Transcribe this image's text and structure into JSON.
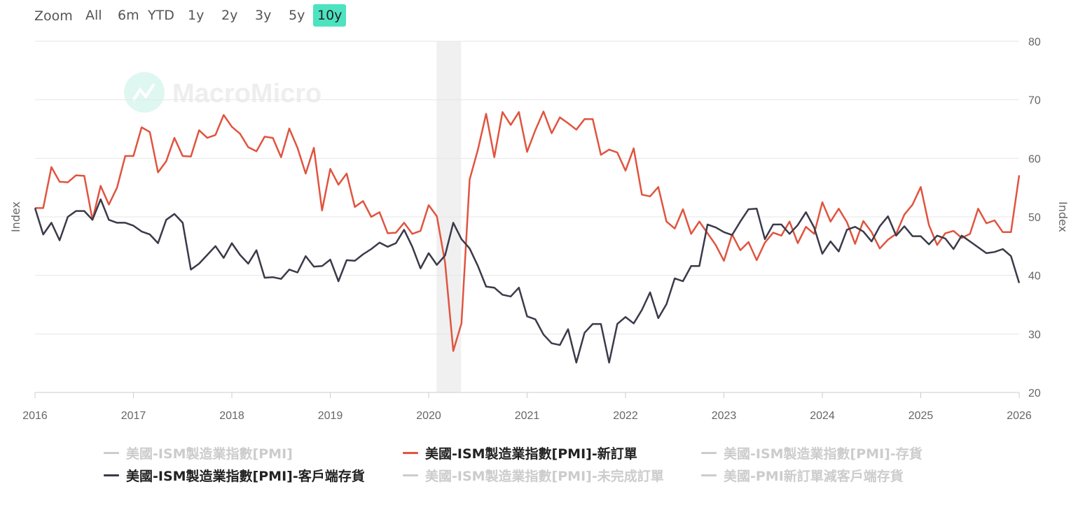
{
  "zoom": {
    "label": "Zoom",
    "buttons": [
      "All",
      "6m",
      "YTD",
      "1y",
      "2y",
      "3y",
      "5y",
      "10y"
    ],
    "active": "10y"
  },
  "watermark": "MacroMicro",
  "legend": [
    {
      "label": "美國-ISM製造業指數[PMI]",
      "visible": false,
      "color": "#cccccc"
    },
    {
      "label": "美國-ISM製造業指數[PMI]-新訂單",
      "visible": true,
      "color": "#e0543f"
    },
    {
      "label": "美國-ISM製造業指數[PMI]-存貨",
      "visible": false,
      "color": "#cccccc"
    },
    {
      "label": "美國-ISM製造業指數[PMI]-客戶端存貨",
      "visible": true,
      "color": "#3a3a4a"
    },
    {
      "label": "美國-ISM製造業指數[PMI]-未完成訂單",
      "visible": false,
      "color": "#cccccc"
    },
    {
      "label": "美國-PMI新訂單減客戶端存貨",
      "visible": false,
      "color": "#cccccc"
    }
  ],
  "chart_data": {
    "type": "line",
    "xlabel": "",
    "ylabel_left": "Index",
    "ylabel_right": "Index",
    "xlim": [
      2016,
      2026
    ],
    "ylim": [
      20,
      80
    ],
    "x_ticks": [
      "2016",
      "2017",
      "2018",
      "2019",
      "2020",
      "2021",
      "2022",
      "2023",
      "2024",
      "2025",
      "2026"
    ],
    "y_ticks": [
      "20",
      "30",
      "40",
      "50",
      "60",
      "70",
      "80"
    ],
    "recession_band": {
      "from": 2020.08,
      "to": 2020.33
    },
    "grid": true,
    "legend_position": "bottom",
    "series": [
      {
        "name": "美國-ISM製造業指數[PMI]-新訂單",
        "color": "#e0543f",
        "values": [
          51.5,
          51.5,
          58.5,
          56,
          55.9,
          57.1,
          57,
          49.5,
          55.3,
          52.1,
          55,
          60.4,
          60.4,
          65.3,
          64.5,
          57.6,
          59.5,
          63.5,
          60.4,
          60.3,
          64.8,
          63.5,
          64,
          67.4,
          65.4,
          64.2,
          61.9,
          61.2,
          63.7,
          63.5,
          60.2,
          65.1,
          61.8,
          57.4,
          61.8,
          51.1,
          58.2,
          55.5,
          57.4,
          51.7,
          52.7,
          50,
          50.8,
          47.2,
          47.3,
          49,
          47.1,
          47.6,
          52,
          50.1,
          42.2,
          27.1,
          31.8,
          56.4,
          61.5,
          67.6,
          60.2,
          67.9,
          65.7,
          67.9,
          61.1,
          64.8,
          68,
          64.3,
          67,
          66,
          64.9,
          66.7,
          66.7,
          60.6,
          61.5,
          61,
          57.9,
          61.7,
          53.8,
          53.5,
          55.1,
          49.2,
          48,
          51.3,
          47.1,
          49.2,
          47.2,
          45.2,
          42.5,
          47,
          44.3,
          45.7,
          42.6,
          45.6,
          47.3,
          46.8,
          49.2,
          45.5,
          48.3,
          47.1,
          52.5,
          49.2,
          51.4,
          49.1,
          45.4,
          49.3,
          47.4,
          44.6,
          46.1,
          47.1,
          50.4,
          52.1,
          55.1,
          48.6,
          45.2,
          47.2,
          47.6,
          46.4,
          47.1,
          51.4,
          48.9,
          49.4,
          47.4,
          47.4,
          57.1
        ]
      },
      {
        "name": "美國-ISM製造業指數[PMI]-客戶端存貨",
        "color": "#3a3a4a",
        "values": [
          51.5,
          47,
          49,
          46,
          50,
          51,
          51,
          49.5,
          53,
          49.5,
          49,
          49,
          48.5,
          47.5,
          47,
          45.5,
          49.5,
          50.5,
          49,
          41,
          42,
          43.5,
          45,
          43,
          45.5,
          43.5,
          42,
          44.3,
          39.6,
          39.7,
          39.4,
          41,
          40.5,
          43.3,
          41.5,
          41.6,
          42.7,
          39,
          42.6,
          42.5,
          43.6,
          44.5,
          45.6,
          44.9,
          45.5,
          47.8,
          44.9,
          41.2,
          43.8,
          41.8,
          43.4,
          49,
          46.2,
          44.6,
          41.6,
          38.1,
          37.9,
          36.7,
          36.4,
          37.9,
          33,
          32.5,
          29.9,
          28.4,
          28.1,
          30.8,
          25.1,
          30.2,
          31.7,
          31.7,
          25.1,
          31.7,
          32.9,
          31.8,
          34.1,
          37.1,
          32.7,
          35.1,
          39.5,
          39,
          41.6,
          41.6,
          48.7,
          48.2,
          47.4,
          46.9,
          49.2,
          51.3,
          51.4,
          46.2,
          48.7,
          48.7,
          47.1,
          48.6,
          50.8,
          48.2,
          43.7,
          45.8,
          44.1,
          47.8,
          48.3,
          47.5,
          45.8,
          48.4,
          50.1,
          46.8,
          48.4,
          46.7,
          46.7,
          45.3,
          46.8,
          46.3,
          44.5,
          46.8,
          45.8,
          44.8,
          43.8,
          44,
          44.5,
          43.3,
          38.7
        ]
      }
    ]
  }
}
